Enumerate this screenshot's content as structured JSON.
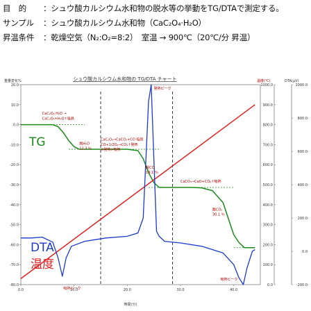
{
  "header": {
    "purpose_label": "目　的",
    "purpose_text": "：シュウ酸カルシウム水和物の脱水等の挙動をTG/DTAで測定する。",
    "sample_label": "サンプル",
    "sample_text": "：シュウ酸カルシウム水和物（CaC₂O₄·H₂O）",
    "cond_label": "昇温条件",
    "cond_text": "：乾燥空気（N₂:O₂=8:2）　室温 → 900℃（20℃/分 昇温）"
  },
  "chart_data": {
    "type": "line",
    "title": "シュウ酸カルシウム水和物の TG/DTA チャート",
    "xlabel": "時間(分)",
    "ylabel_left": "重量変化%",
    "ylabel_temp": "温度(℃)",
    "ylabel_dta": "DTA(μV)",
    "xlim": [
      0,
      45
    ],
    "x_ticks": [
      "0.0",
      "10.0",
      "20.0",
      "30.0",
      "40.0"
    ],
    "left_ticks": [
      "20.0",
      "10.0",
      "0.0",
      "-10.0",
      "-20.0",
      "-30.0",
      "-40.0",
      "-50.0",
      "-60.0",
      "-70.0",
      "-80.0"
    ],
    "temp_ticks": [
      "1000.0",
      "900.0",
      "800.0",
      "700.0",
      "600.0",
      "500.0",
      "400.0",
      "300.0",
      "200.0",
      "100.0",
      "0.0"
    ],
    "dta_ticks": [
      "1000.0",
      "800.0",
      "600.0",
      "400.0",
      "200.0",
      "0.0",
      "-200.0"
    ],
    "series": [
      {
        "name": "TG",
        "color": "#1a8a1a",
        "x": [
          0,
          3,
          6,
          7,
          8,
          9,
          10,
          11,
          12,
          14,
          16,
          18,
          20,
          22,
          23,
          24,
          25,
          26,
          28,
          30,
          32,
          34,
          36,
          38,
          39,
          40,
          41,
          42,
          43,
          44
        ],
        "y": [
          0,
          0,
          0,
          -1,
          -4,
          -8,
          -11,
          -12.3,
          -12.3,
          -12.3,
          -12.3,
          -12.3,
          -12.3,
          -13,
          -17,
          -24,
          -29,
          -31.4,
          -31.4,
          -31.4,
          -31.4,
          -31.6,
          -33,
          -39,
          -47,
          -55,
          -59,
          -61.5,
          -61.5,
          -61.5
        ]
      },
      {
        "name": "温度",
        "color": "#e02020",
        "x": [
          0,
          44
        ],
        "y": [
          30,
          900
        ]
      },
      {
        "name": "DTA",
        "color": "#1a3acc",
        "x": [
          0,
          2,
          4,
          6,
          7,
          7.8,
          8.5,
          9.5,
          12,
          16,
          20,
          22,
          23,
          24,
          24.5,
          25,
          25.5,
          26,
          27,
          30,
          34,
          38,
          40,
          41,
          41.8,
          42.5,
          43.5,
          44
        ],
        "y": [
          80,
          80,
          85,
          55,
          -40,
          -150,
          -40,
          30,
          60,
          80,
          90,
          110,
          200,
          900,
          1000,
          550,
          120,
          90,
          60,
          50,
          30,
          -10,
          -80,
          -160,
          -200,
          -100,
          0,
          10
        ]
      }
    ],
    "annotations": [
      {
        "text": "発熱ピーク",
        "x": 25,
        "y_dta": 970
      },
      {
        "text": "CaC₂O₄·H₂O →",
        "x": 4,
        "y_tg": 5
      },
      {
        "text": "CaC₂O₄+H₂O↑吸熱",
        "x": 4,
        "y_tg": 2.5
      },
      {
        "text": "脱H₂O",
        "x": 11,
        "y_tg": -10
      },
      {
        "text": "12.3 ％",
        "x": 11,
        "y_tg": -12.5
      },
      {
        "text": "CaC₂O₄→CaCO₃+CO 吸熱",
        "x": 15,
        "y_tg": -8
      },
      {
        "text": "CO+1/2O₂→CO₂↑発熱",
        "x": 15,
        "y_tg": -10.5
      },
      {
        "text": "※発熱>吸熱",
        "x": 15,
        "y_tg": -13
      },
      {
        "text": "脱CO",
        "x": 23.5,
        "y_tg": -22
      },
      {
        "text": "19.1 ％",
        "x": 23.5,
        "y_tg": -24.5
      },
      {
        "text": "CaCO₃→CaO+CO₂↑吸熱",
        "x": 30,
        "y_tg": -29
      },
      {
        "text": "脱CO₂",
        "x": 36,
        "y_tg": -43
      },
      {
        "text": "30.1 ％",
        "x": 36,
        "y_tg": -45.5
      },
      {
        "text": "吸熱ピーク",
        "x": 8,
        "y_dta": -230
      },
      {
        "text": "吸熱ピーク",
        "x": 37.5,
        "y_dta": -175
      }
    ],
    "legend": {
      "tg": "TG",
      "dta": "DTA",
      "temp": "温度"
    },
    "grid": false
  }
}
